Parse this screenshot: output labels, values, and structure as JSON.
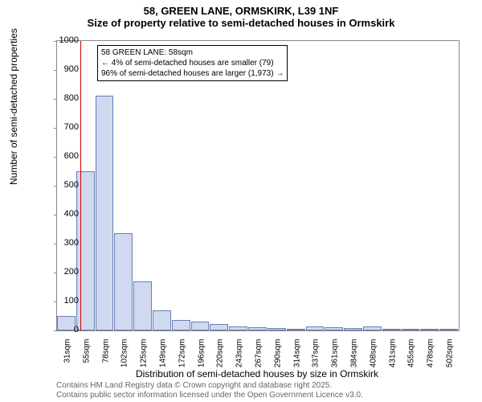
{
  "title": "58, GREEN LANE, ORMSKIRK, L39 1NF",
  "subtitle": "Size of property relative to semi-detached houses in Ormskirk",
  "ylabel": "Number of semi-detached properties",
  "xlabel": "Distribution of semi-detached houses by size in Ormskirk",
  "footer_line1": "Contains HM Land Registry data © Crown copyright and database right 2025.",
  "footer_line2": "Contains public sector information licensed under the Open Government Licence v3.0.",
  "annotation": {
    "line1": "58 GREEN LANE: 58sqm",
    "line2": "← 4% of semi-detached houses are smaller (79)",
    "line3": "96% of semi-detached houses are larger (1,973) →"
  },
  "chart": {
    "type": "histogram",
    "ylim": [
      0,
      1000
    ],
    "ytick_step": 100,
    "bar_fill": "#cfd9ef",
    "bar_border": "#6a7fb2",
    "marker_color": "#cc0000",
    "marker_x_index": 1.2,
    "background_color": "#ffffff",
    "x_categories": [
      "31sqm",
      "55sqm",
      "78sqm",
      "102sqm",
      "125sqm",
      "149sqm",
      "172sqm",
      "196sqm",
      "220sqm",
      "243sqm",
      "267sqm",
      "290sqm",
      "314sqm",
      "337sqm",
      "361sqm",
      "384sqm",
      "408sqm",
      "431sqm",
      "455sqm",
      "478sqm",
      "502sqm"
    ],
    "values": [
      50,
      550,
      810,
      335,
      170,
      70,
      35,
      30,
      22,
      15,
      10,
      8,
      5,
      15,
      12,
      8,
      15,
      3,
      2,
      2,
      2
    ]
  }
}
